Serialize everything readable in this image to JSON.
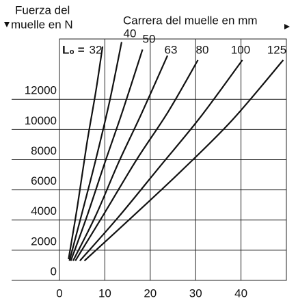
{
  "chart_data": {
    "type": "line",
    "y_label_lines": [
      "Fuerza del",
      "muelle en N"
    ],
    "x_label": "Carrera del muelle en mm",
    "curve_label_prefix": "L₀ =",
    "xlim": [
      0,
      50
    ],
    "xticks": [
      0,
      10,
      20,
      30,
      40
    ],
    "ylim": [
      0,
      16000
    ],
    "yticks": [
      0,
      2000,
      4000,
      6000,
      8000,
      10000,
      12000
    ],
    "grid": true,
    "series": [
      {
        "name": "32",
        "color": "#111111",
        "x": [
          2,
          4,
          6,
          8,
          9.5
        ],
        "values": [
          1400,
          5000,
          9000,
          12500,
          15500
        ]
      },
      {
        "name": "40",
        "color": "#111111",
        "x": [
          2.2,
          5,
          8,
          11,
          13.7
        ],
        "values": [
          1300,
          4500,
          8000,
          11800,
          15800
        ]
      },
      {
        "name": "50",
        "color": "#111111",
        "x": [
          2.5,
          6,
          10,
          14,
          18.3
        ],
        "values": [
          1300,
          4200,
          7800,
          11300,
          15300
        ]
      },
      {
        "name": "63",
        "color": "#111111",
        "x": [
          3,
          8,
          13,
          18,
          23.8
        ],
        "values": [
          1300,
          4300,
          7800,
          11000,
          14900
        ]
      },
      {
        "name": "80",
        "color": "#111111",
        "x": [
          3.5,
          10,
          17,
          24,
          30.5
        ],
        "values": [
          1300,
          4500,
          8000,
          11200,
          14600
        ]
      },
      {
        "name": "100",
        "color": "#111111",
        "x": [
          4.5,
          13,
          22,
          31,
          40.3
        ],
        "values": [
          1300,
          4200,
          7500,
          10800,
          14600
        ]
      },
      {
        "name": "125",
        "color": "#111111",
        "x": [
          5.5,
          16,
          27,
          38,
          49.3
        ],
        "values": [
          1300,
          4200,
          7300,
          10600,
          14600
        ]
      }
    ]
  }
}
